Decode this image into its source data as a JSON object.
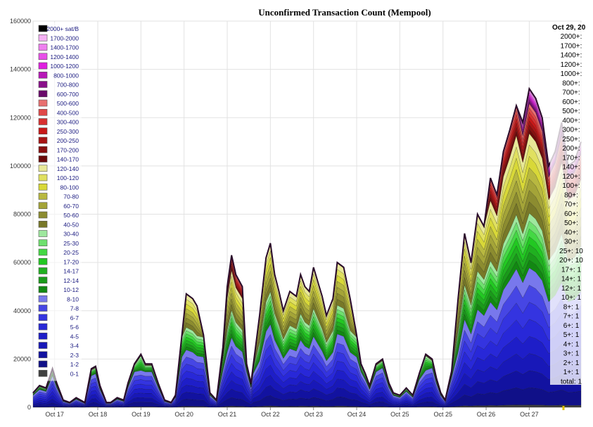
{
  "chart_data": {
    "type": "area",
    "stacked": true,
    "title": "Unconfirmed Transaction Count (Mempool)",
    "xlabel": "",
    "ylabel": "",
    "ylim": [
      0,
      160000
    ],
    "yticks": [
      0,
      20000,
      40000,
      60000,
      80000,
      100000,
      120000,
      140000,
      160000
    ],
    "xlim": [
      16.5,
      29.2
    ],
    "xticks": [
      {
        "x": 17,
        "label": "Oct 17"
      },
      {
        "x": 18,
        "label": "Oct 18"
      },
      {
        "x": 19,
        "label": "Oct 19"
      },
      {
        "x": 20,
        "label": "Oct 20"
      },
      {
        "x": 21,
        "label": "Oct 21"
      },
      {
        "x": 22,
        "label": "Oct 22"
      },
      {
        "x": 23,
        "label": "Oct 23"
      },
      {
        "x": 24,
        "label": "Oct 24"
      },
      {
        "x": 25,
        "label": "Oct 25"
      },
      {
        "x": 26,
        "label": "Oct 25"
      },
      {
        "x": 27,
        "label": "Oct 26"
      },
      {
        "x": 28,
        "label": "Oct 27"
      }
    ],
    "grid": true,
    "legend_position": "top-left",
    "total_series": {
      "x": [
        16.5,
        16.65,
        16.8,
        16.95,
        17.05,
        17.2,
        17.35,
        17.5,
        17.7,
        17.85,
        17.95,
        18.05,
        18.2,
        18.3,
        18.45,
        18.6,
        18.7,
        18.85,
        19.0,
        19.1,
        19.25,
        19.4,
        19.55,
        19.7,
        19.8,
        19.95,
        20.05,
        20.2,
        20.3,
        20.45,
        20.6,
        20.75,
        20.9,
        21.0,
        21.1,
        21.2,
        21.35,
        21.45,
        21.55,
        21.6,
        21.75,
        21.9,
        22.0,
        22.1,
        22.2,
        22.3,
        22.45,
        22.6,
        22.7,
        22.8,
        22.9,
        23.0,
        23.1,
        23.2,
        23.3,
        23.45,
        23.55,
        23.7,
        23.85,
        24.0,
        24.1,
        24.2,
        24.3,
        24.45,
        24.6,
        24.75,
        24.85,
        25.0,
        25.15,
        25.3,
        25.45,
        25.6,
        25.75,
        25.85,
        25.95,
        26.05,
        26.2,
        26.35,
        26.5,
        26.65,
        26.8,
        26.95,
        27.1,
        27.25,
        27.4,
        27.55,
        27.7,
        27.85,
        28.0,
        28.15,
        28.3,
        28.45,
        28.6,
        28.75,
        28.9,
        29.05,
        29.2
      ],
      "y": [
        6000,
        9000,
        8000,
        16000,
        10000,
        3000,
        2000,
        4000,
        2000,
        16000,
        17000,
        9000,
        2000,
        2000,
        4000,
        3000,
        10000,
        18000,
        22000,
        18000,
        18000,
        10000,
        3000,
        2000,
        5000,
        30000,
        47000,
        45000,
        42000,
        30000,
        6000,
        3000,
        25000,
        50000,
        63000,
        55000,
        50000,
        18000,
        10000,
        17000,
        38000,
        62000,
        68000,
        55000,
        48000,
        40000,
        48000,
        46000,
        55000,
        50000,
        48000,
        58000,
        52000,
        46000,
        38000,
        45000,
        60000,
        58000,
        45000,
        30000,
        18000,
        14000,
        9000,
        18000,
        20000,
        10000,
        6000,
        5000,
        8000,
        5000,
        14000,
        22000,
        20000,
        12000,
        6000,
        3000,
        15000,
        45000,
        72000,
        60000,
        80000,
        75000,
        95000,
        88000,
        106000,
        115000,
        125000,
        118000,
        132000,
        128000,
        120000,
        100000,
        106000,
        118000,
        100000,
        102000,
        110000
      ]
    },
    "series": [
      {
        "name": "0-1",
        "color": "#404040"
      },
      {
        "name": "1-2",
        "color": "#101088"
      },
      {
        "name": "2-3",
        "color": "#1212a0"
      },
      {
        "name": "3-4",
        "color": "#1818b8"
      },
      {
        "name": "4-5",
        "color": "#1e1ec8"
      },
      {
        "name": "5-6",
        "color": "#2828d8"
      },
      {
        "name": "6-7",
        "color": "#3434e0"
      },
      {
        "name": "7-8",
        "color": "#4646e4"
      },
      {
        "name": "8-10",
        "color": "#7878ec"
      },
      {
        "name": "10-12",
        "color": "#128812"
      },
      {
        "name": "12-14",
        "color": "#1a9a1a"
      },
      {
        "name": "14-17",
        "color": "#20b020"
      },
      {
        "name": "17-20",
        "color": "#22c822"
      },
      {
        "name": "20-25",
        "color": "#44d844"
      },
      {
        "name": "25-30",
        "color": "#6ee06e"
      },
      {
        "name": "30-40",
        "color": "#9ee89e"
      },
      {
        "name": "40-50",
        "color": "#787828"
      },
      {
        "name": "50-60",
        "color": "#8c8c30"
      },
      {
        "name": "60-70",
        "color": "#a4a438"
      },
      {
        "name": "70-80",
        "color": "#b8b840"
      },
      {
        "name": "80-100",
        "color": "#d8d838"
      },
      {
        "name": "100-120",
        "color": "#e0e060"
      },
      {
        "name": "120-140",
        "color": "#e8e898"
      },
      {
        "name": "140-170",
        "color": "#6a0a0a"
      },
      {
        "name": "170-200",
        "color": "#881010"
      },
      {
        "name": "200-250",
        "color": "#a81414"
      },
      {
        "name": "250-300",
        "color": "#c81818"
      },
      {
        "name": "300-400",
        "color": "#d83030"
      },
      {
        "name": "400-500",
        "color": "#e04848"
      },
      {
        "name": "500-600",
        "color": "#e87070"
      },
      {
        "name": "600-700",
        "color": "#6a0a6a"
      },
      {
        "name": "700-800",
        "color": "#8a108a"
      },
      {
        "name": "800-1000",
        "color": "#b818b8"
      },
      {
        "name": "1000-1200",
        "color": "#e020e0"
      },
      {
        "name": "1200-1400",
        "color": "#e850e8"
      },
      {
        "name": "1400-1700",
        "color": "#ee80ee"
      },
      {
        "name": "1700-2000",
        "color": "#f4b0f4"
      },
      {
        "name": "2000+ sat/B",
        "color": "#000000"
      }
    ],
    "tooltip": {
      "header": "Oct 29, 20",
      "rows": [
        "2000+:",
        "1700+:",
        "1400+:",
        "1200+:",
        "1000+:",
        "800+:",
        "700+:",
        "600+:",
        "500+:",
        "400+:",
        "300+:",
        "250+:",
        "200+:",
        "170+:",
        "140+:",
        "120+:",
        "100+:",
        "80+:",
        "70+:",
        "60+:",
        "50+:",
        "40+:",
        "30+:",
        "25+: 10",
        "20+: 10",
        "17+: 1",
        "14+: 1",
        "12+: 1",
        "10+: 1",
        "8+: 1",
        "7+: 1",
        "6+: 1",
        "5+: 1",
        "4+: 1",
        "3+: 1",
        "2+: 1",
        "1+: 1",
        "total: 1"
      ]
    }
  }
}
